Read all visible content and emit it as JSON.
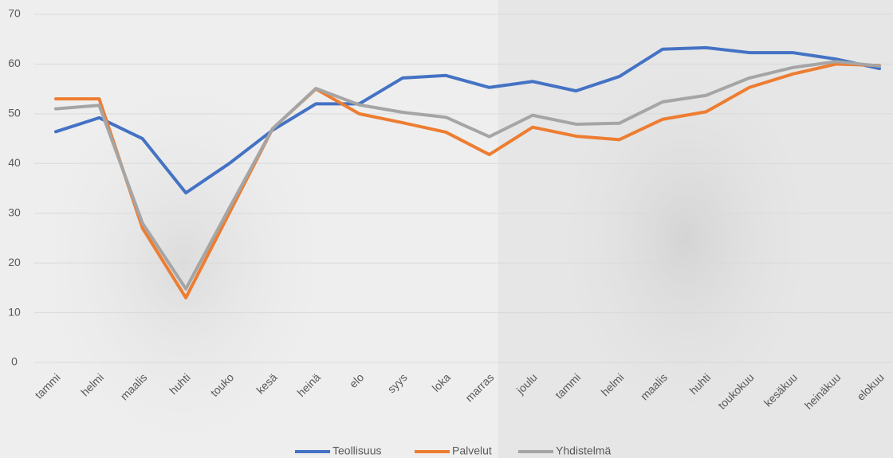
{
  "chart_data": {
    "type": "line",
    "categories": [
      "tammi",
      "helmi",
      "maalis",
      "huhti",
      "touko",
      "kesä",
      "heinä",
      "elo",
      "syys",
      "loka",
      "marras",
      "joulu",
      "tammi",
      "helmi",
      "maalis",
      "huhti",
      "toukokuu",
      "kesäkuu",
      "heinäkuu",
      "elokuu"
    ],
    "series": [
      {
        "name": "Teollisuus",
        "color": "#4472c4",
        "values": [
          46.4,
          49.2,
          45,
          34.1,
          40,
          46.7,
          52,
          52,
          57.2,
          57.7,
          55.3,
          56.5,
          54.6,
          57.5,
          63,
          63.3,
          62.3,
          62.3,
          61,
          59.1
        ]
      },
      {
        "name": "Palvelut",
        "color": "#ed7d31",
        "values": [
          53,
          53,
          27,
          13,
          30,
          47,
          55,
          50,
          48.2,
          46.3,
          41.8,
          47.3,
          45.5,
          44.8,
          48.9,
          50.4,
          55.3,
          58,
          60,
          59.7
        ]
      },
      {
        "name": "Yhdistelmä",
        "color": "#a5a5a5",
        "values": [
          51,
          51.7,
          28,
          14.8,
          31,
          47,
          55.1,
          51.8,
          50.3,
          49.3,
          45.4,
          49.7,
          47.9,
          48.1,
          52.4,
          53.7,
          57.2,
          59.3,
          60.5,
          59.6
        ]
      }
    ],
    "ylim": [
      0,
      70
    ],
    "yticks": [
      0,
      10,
      20,
      30,
      40,
      50,
      60,
      70
    ],
    "grid": true,
    "legend": "bottom"
  }
}
